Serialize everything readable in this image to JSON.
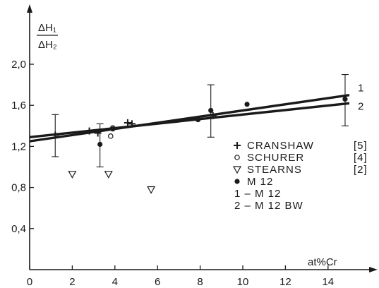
{
  "chart_data": {
    "type": "scatter",
    "ylabel_num": "ΔH₁",
    "ylabel_den": "ΔH₂",
    "xlabel": "at%Cr",
    "xlim": [
      0,
      16
    ],
    "ylim": [
      0,
      2.4
    ],
    "x_ticks": [
      {
        "value": 0,
        "label": "0"
      },
      {
        "value": 2,
        "label": "2"
      },
      {
        "value": 4,
        "label": "4"
      },
      {
        "value": 6,
        "label": "6"
      },
      {
        "value": 8,
        "label": "8"
      },
      {
        "value": 10,
        "label": "10"
      },
      {
        "value": 12,
        "label": "12"
      },
      {
        "value": 14,
        "label": "14"
      }
    ],
    "y_ticks": [
      {
        "value": 0.4,
        "label": "0,4"
      },
      {
        "value": 0.8,
        "label": "0,8"
      },
      {
        "value": 1.2,
        "label": "1,2"
      },
      {
        "value": 1.6,
        "label": "1,6"
      },
      {
        "value": 2.0,
        "label": "2,0"
      }
    ],
    "series": [
      {
        "name": "CRANSHAW",
        "ref": "[5]",
        "marker": "plus",
        "points": [
          {
            "x": 1.2,
            "y": 1.31
          },
          {
            "x": 2.8,
            "y": 1.35
          },
          {
            "x": 3.2,
            "y": 1.33
          },
          {
            "x": 4.6,
            "y": 1.43
          },
          {
            "x": 4.8,
            "y": 1.42
          },
          {
            "x": 8.6,
            "y": 1.5
          }
        ]
      },
      {
        "name": "SCHURER",
        "ref": "[4]",
        "marker": "circle-open",
        "points": [
          {
            "x": 3.8,
            "y": 1.3
          },
          {
            "x": 3.9,
            "y": 1.38
          }
        ]
      },
      {
        "name": "STEARNS",
        "ref": "[2]",
        "marker": "triangle-down-open",
        "points": [
          {
            "x": 2.0,
            "y": 0.93
          },
          {
            "x": 3.7,
            "y": 0.93
          },
          {
            "x": 5.7,
            "y": 0.78
          }
        ]
      },
      {
        "name": "M 12",
        "ref": "",
        "marker": "circle-filled",
        "points": [
          {
            "x": 3.3,
            "y": 1.22
          },
          {
            "x": 3.9,
            "y": 1.37
          },
          {
            "x": 7.9,
            "y": 1.46
          },
          {
            "x": 8.5,
            "y": 1.55
          },
          {
            "x": 10.2,
            "y": 1.61
          },
          {
            "x": 14.8,
            "y": 1.66
          }
        ]
      }
    ],
    "error_bars": [
      {
        "x": 1.2,
        "low": 1.1,
        "high": 1.51
      },
      {
        "x": 3.3,
        "low": 1.0,
        "high": 1.42
      },
      {
        "x": 8.5,
        "low": 1.29,
        "high": 1.8
      },
      {
        "x": 14.8,
        "low": 1.4,
        "high": 1.9
      }
    ],
    "fit_lines": [
      {
        "label": "1",
        "x": [
          0,
          15
        ],
        "y": [
          1.25,
          1.7
        ]
      },
      {
        "label": "2",
        "x": [
          0,
          15
        ],
        "y": [
          1.29,
          1.62
        ]
      }
    ],
    "legend_lines": [
      "1 – M 12",
      "2 – M 12 BW"
    ]
  }
}
